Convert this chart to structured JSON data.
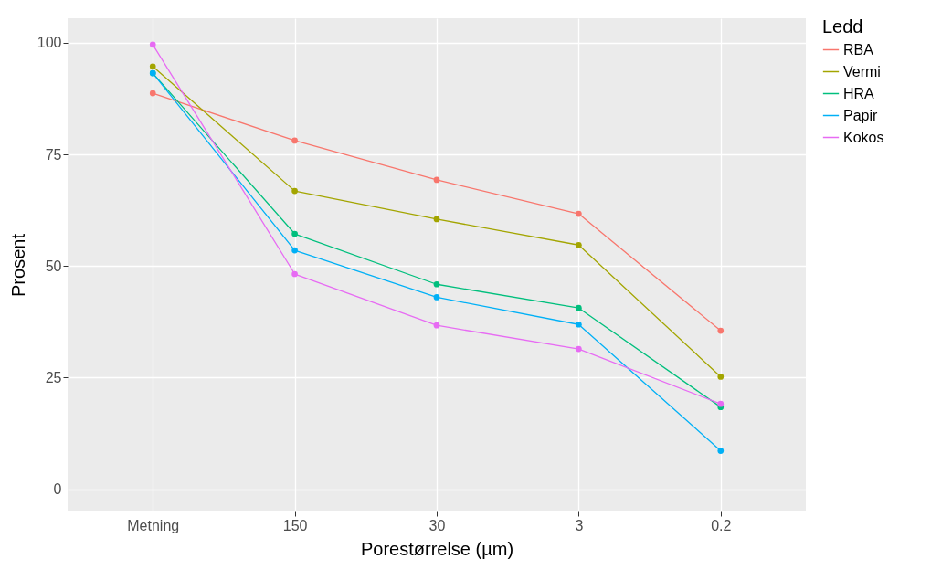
{
  "chart_data": {
    "type": "line",
    "xlabel": "Porestørrelse (µm)",
    "ylabel": "Prosent",
    "legend_title": "Ledd",
    "categories": [
      "Metning",
      "150",
      "30",
      "3",
      "0.2"
    ],
    "series": [
      {
        "name": "RBA",
        "color": "#f8766d",
        "values": [
          88.7,
          78.1,
          69.3,
          61.7,
          35.5
        ]
      },
      {
        "name": "Vermi",
        "color": "#a3a500",
        "values": [
          94.7,
          66.8,
          60.5,
          54.7,
          25.2
        ]
      },
      {
        "name": "HRA",
        "color": "#00bf7d",
        "values": [
          93.2,
          57.2,
          45.9,
          40.6,
          18.4
        ]
      },
      {
        "name": "Papir",
        "color": "#00b0f6",
        "values": [
          93.2,
          53.5,
          43.0,
          36.9,
          8.6
        ]
      },
      {
        "name": "Kokos",
        "color": "#e76bf3",
        "values": [
          99.6,
          48.2,
          36.7,
          31.4,
          19.1
        ]
      }
    ],
    "ylim": [
      -5,
      105.5
    ],
    "yticks": [
      0,
      25,
      50,
      75,
      100
    ],
    "grid": true,
    "legend": "right",
    "marker": "circle"
  }
}
